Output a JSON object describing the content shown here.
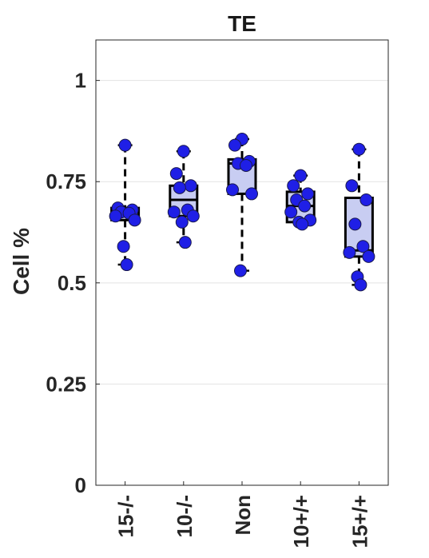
{
  "chart_data": {
    "type": "box",
    "title": "TE",
    "ylabel": "Cell %",
    "xlabel": "",
    "ylim": [
      0,
      1.1
    ],
    "yticks": [
      0,
      0.25,
      0.5,
      0.75,
      1
    ],
    "ytick_labels": [
      "0",
      "0.25",
      "0.5",
      "0.75",
      "1"
    ],
    "grid": "horizontal",
    "categories": [
      "15-/-",
      "10-/-",
      "Non",
      "10+/+",
      "15+/+"
    ],
    "box_color": "#c8cdf2",
    "point_color": "#1f1fe6",
    "groups": [
      {
        "label": "15-/-",
        "whisker_low": 0.545,
        "q1": 0.655,
        "median": 0.675,
        "q3": 0.685,
        "whisker_high": 0.84,
        "points": [
          0.84,
          0.685,
          0.68,
          0.675,
          0.672,
          0.665,
          0.655,
          0.59,
          0.545
        ]
      },
      {
        "label": "10-/-",
        "whisker_low": 0.6,
        "q1": 0.665,
        "median": 0.705,
        "q3": 0.74,
        "whisker_high": 0.825,
        "points": [
          0.825,
          0.77,
          0.74,
          0.735,
          0.68,
          0.675,
          0.665,
          0.65,
          0.6
        ]
      },
      {
        "label": "Non",
        "whisker_low": 0.53,
        "q1": 0.72,
        "median": 0.795,
        "q3": 0.805,
        "whisker_high": 0.855,
        "points": [
          0.855,
          0.84,
          0.8,
          0.795,
          0.79,
          0.73,
          0.72,
          0.53
        ]
      },
      {
        "label": "10+/+",
        "whisker_low": 0.645,
        "q1": 0.65,
        "median": 0.69,
        "q3": 0.725,
        "whisker_high": 0.765,
        "points": [
          0.765,
          0.74,
          0.72,
          0.705,
          0.69,
          0.675,
          0.655,
          0.65,
          0.645
        ]
      },
      {
        "label": "15+/+",
        "whisker_low": 0.495,
        "q1": 0.565,
        "median": 0.58,
        "q3": 0.71,
        "whisker_high": 0.83,
        "points": [
          0.83,
          0.74,
          0.705,
          0.645,
          0.59,
          0.575,
          0.565,
          0.515,
          0.495
        ]
      }
    ]
  }
}
